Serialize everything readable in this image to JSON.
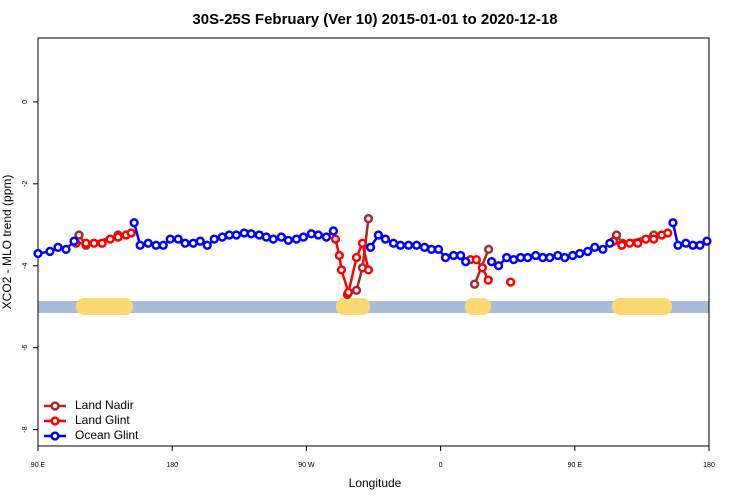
{
  "chart_data": {
    "type": "line",
    "title": "30S-25S February (Ver 10)   2015-01-01 to 2020-12-18",
    "x_label": "Longitude",
    "y_label": "XCO2 - MLO trend (ppm)",
    "xlim": [
      90,
      540
    ],
    "ylim": [
      -8.4,
      1.56
    ],
    "xticks": [
      {
        "value": 90,
        "label": "90 E"
      },
      {
        "value": 180,
        "label": "180"
      },
      {
        "value": 270,
        "label": "90 W"
      },
      {
        "value": 360,
        "label": "0"
      },
      {
        "value": 450,
        "label": "90 E"
      },
      {
        "value": 540,
        "label": "180"
      }
    ],
    "yticks": [
      0,
      -2,
      -4,
      -6,
      -8
    ],
    "legend": "bottom-left",
    "series": [
      {
        "name": "Land Nadir",
        "color": "#a52a2a",
        "x": [
          117.5,
          122.2,
          143.7,
          null,
          297.5,
          303.6,
          307.6,
          311.6,
          null,
          382.8,
          392.2,
          null,
          478,
          482,
          503
        ],
        "values": [
          -3.25,
          -3.5,
          -3.25,
          null,
          -4.7,
          -4.6,
          -4.05,
          -2.85,
          null,
          -4.45,
          -3.6,
          null,
          -3.25,
          -3.45,
          -3.25
        ]
      },
      {
        "name": "Land Glint",
        "color": "#ff0000",
        "x": [
          115.5,
          122.2,
          127.6,
          133,
          138.4,
          143.7,
          149.1,
          152.5,
          null,
          289.5,
          292.1,
          293.5,
          298.2,
          303.6,
          307.6,
          311.6,
          null,
          380,
          384,
          388,
          392,
          null,
          407,
          null,
          476,
          481.5,
          486.8,
          492.2,
          497.6,
          502.9,
          508.3,
          512.3
        ],
        "values": [
          -3.45,
          -3.45,
          -3.45,
          -3.45,
          -3.35,
          -3.3,
          -3.25,
          -3.2,
          null,
          -3.35,
          -3.75,
          -4.1,
          -4.65,
          -3.8,
          -3.45,
          -4.1,
          null,
          -3.85,
          -3.85,
          -4.05,
          -4.35,
          null,
          -4.4,
          null,
          -3.4,
          -3.5,
          -3.45,
          -3.45,
          -3.35,
          -3.35,
          -3.25,
          -3.2
        ]
      },
      {
        "name": "Ocean Glint",
        "color": "#0000ff",
        "x": [
          90,
          98,
          103.4,
          108.8,
          114.2,
          null,
          154.5,
          158.5,
          163.9,
          169.2,
          174,
          178.7,
          184,
          188.7,
          194.1,
          198.8,
          203.5,
          208.2,
          213.6,
          218.3,
          223,
          228.3,
          233,
          238.4,
          243.1,
          247.8,
          253.2,
          257.9,
          263.3,
          268,
          273.3,
          278,
          283.4,
          288.1,
          null,
          313,
          318.3,
          323,
          328.4,
          333.1,
          338.5,
          343.9,
          349.2,
          353.9,
          358.6,
          363.3,
          368.7,
          373.4,
          376.8,
          null,
          394.2,
          398.9,
          404.3,
          409,
          413.7,
          418.4,
          423.8,
          428.5,
          433.2,
          438.6,
          443.3,
          448.6,
          453.3,
          458.7,
          463.4,
          468.8,
          473.5,
          null,
          515.8,
          519.2,
          524.5,
          529.2,
          533.9,
          538.6
        ],
        "values": [
          -3.7,
          -3.65,
          -3.55,
          -3.6,
          -3.4,
          null,
          -2.95,
          -3.5,
          -3.45,
          -3.5,
          -3.5,
          -3.35,
          -3.35,
          -3.45,
          -3.45,
          -3.4,
          -3.5,
          -3.35,
          -3.3,
          -3.25,
          -3.25,
          -3.2,
          -3.22,
          -3.25,
          -3.3,
          -3.35,
          -3.3,
          -3.38,
          -3.35,
          -3.3,
          -3.22,
          -3.25,
          -3.3,
          -3.15,
          null,
          -3.55,
          -3.25,
          -3.35,
          -3.45,
          -3.5,
          -3.5,
          -3.5,
          -3.55,
          -3.6,
          -3.6,
          -3.8,
          -3.75,
          -3.75,
          -3.9,
          null,
          -3.9,
          -4.0,
          -3.8,
          -3.85,
          -3.8,
          -3.8,
          -3.75,
          -3.8,
          -3.8,
          -3.75,
          -3.8,
          -3.75,
          -3.7,
          -3.65,
          -3.55,
          -3.6,
          -3.45,
          null,
          -2.95,
          -3.5,
          -3.45,
          -3.5,
          -3.5,
          -3.4
        ]
      }
    ]
  }
}
